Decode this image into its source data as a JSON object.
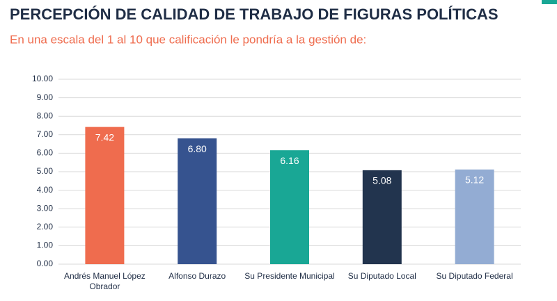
{
  "chart_data": {
    "type": "bar",
    "title": "PERCEPCIÓN DE CALIDAD DE TRABAJO DE FIGURAS POLÍTICAS",
    "subtitle": "En una escala del 1 al 10 que calificación le pondría a la gestión de:",
    "categories": [
      "Andrés Manuel López Obrador",
      "Alfonso Durazo",
      "Su Presidente Municipal",
      "Su Diputado Local",
      "Su Diputado Federal"
    ],
    "values": [
      7.42,
      6.8,
      6.16,
      5.08,
      5.12
    ],
    "value_labels": [
      "7.42",
      "6.80",
      "6.16",
      "5.08",
      "5.12"
    ],
    "colors": [
      "#ef6c4e",
      "#36538f",
      "#19a795",
      "#22344e",
      "#93acd3"
    ],
    "ylim": [
      0,
      10
    ],
    "yticks": [
      {
        "value": 0,
        "label": "0.00"
      },
      {
        "value": 1,
        "label": "1.00"
      },
      {
        "value": 2,
        "label": "2.00"
      },
      {
        "value": 3,
        "label": "3.00"
      },
      {
        "value": 4,
        "label": "4.00"
      },
      {
        "value": 5,
        "label": "5.00"
      },
      {
        "value": 6,
        "label": "6.00"
      },
      {
        "value": 7,
        "label": "7.00"
      },
      {
        "value": 8,
        "label": "8.00"
      },
      {
        "value": 9,
        "label": "9.00"
      },
      {
        "value": 10,
        "label": "10.00"
      }
    ],
    "grid": true
  }
}
